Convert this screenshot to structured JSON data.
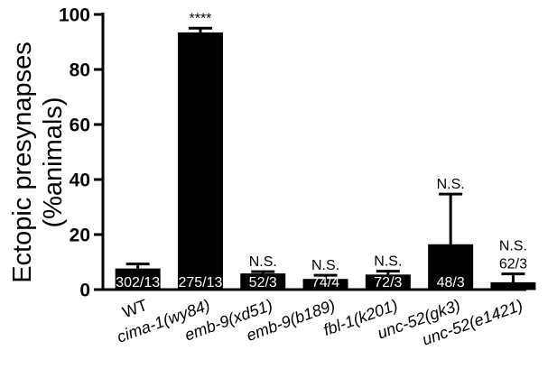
{
  "chart_data": {
    "type": "bar",
    "categories": [
      "WT",
      "cima-1(wy84)",
      "emb-9(xd51)",
      "emb-9(b189)",
      "fbl-1(k201)",
      "unc-52(gk3)",
      "unc-52(e1421)"
    ],
    "category_italic": [
      false,
      true,
      true,
      true,
      true,
      true,
      true
    ],
    "values": [
      7.5,
      93.3,
      5.7,
      3.7,
      5.3,
      16.3,
      2.5
    ],
    "errors": [
      1.8,
      1.7,
      0.8,
      1.5,
      1.4,
      18.4,
      3.2
    ],
    "significance": [
      "",
      "****",
      "N.S.",
      "N.S.",
      "N.S.",
      "N.S.",
      "N.S."
    ],
    "counts": [
      "302/13",
      "275/13",
      "52/3",
      "74/4",
      "72/3",
      "48/3",
      "62/3"
    ],
    "count_inside_bar": [
      true,
      true,
      true,
      true,
      true,
      true,
      false
    ],
    "bar_color": "#000000",
    "ylabel_line1": "Ectopic presynapses",
    "ylabel_line2": "(%animals)",
    "xlabel": "",
    "ylim": [
      0,
      100
    ],
    "yticks": [
      0,
      20,
      40,
      60,
      80,
      100
    ],
    "grid": false
  }
}
